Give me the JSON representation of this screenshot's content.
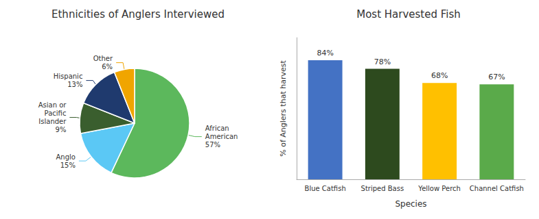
{
  "chart_data": [
    {
      "type": "pie",
      "title": "Ethnicities of Anglers Interviewed",
      "categories": [
        "African\nAmerican",
        "Anglo",
        "Asian or\nPacific\nIslander",
        "Hispanic",
        "Other"
      ],
      "values": [
        57,
        15,
        9,
        13,
        6
      ],
      "value_labels": [
        "57%",
        "15%",
        "9%",
        "13%",
        "6%"
      ],
      "colors": [
        "#5cb85c",
        "#5bc8f5",
        "#3a5e2e",
        "#1f3a6e",
        "#f0a500"
      ],
      "data_labels": true
    },
    {
      "type": "bar",
      "title": "Most Harvested Fish",
      "categories": [
        "Blue Catfish",
        "Striped Bass",
        "Yellow Perch",
        "Channel Catfish"
      ],
      "values": [
        84,
        78,
        68,
        67
      ],
      "value_labels": [
        "84%",
        "78%",
        "68%",
        "67%"
      ],
      "colors": [
        "#4472c4",
        "#2d4a1e",
        "#ffc000",
        "#5aaa4a"
      ],
      "xlabel": "Species",
      "ylabel": "% of Anglers that harvest",
      "ylim": [
        0,
        100
      ],
      "grid": false,
      "data_labels": true,
      "tick_labels": "x"
    }
  ]
}
